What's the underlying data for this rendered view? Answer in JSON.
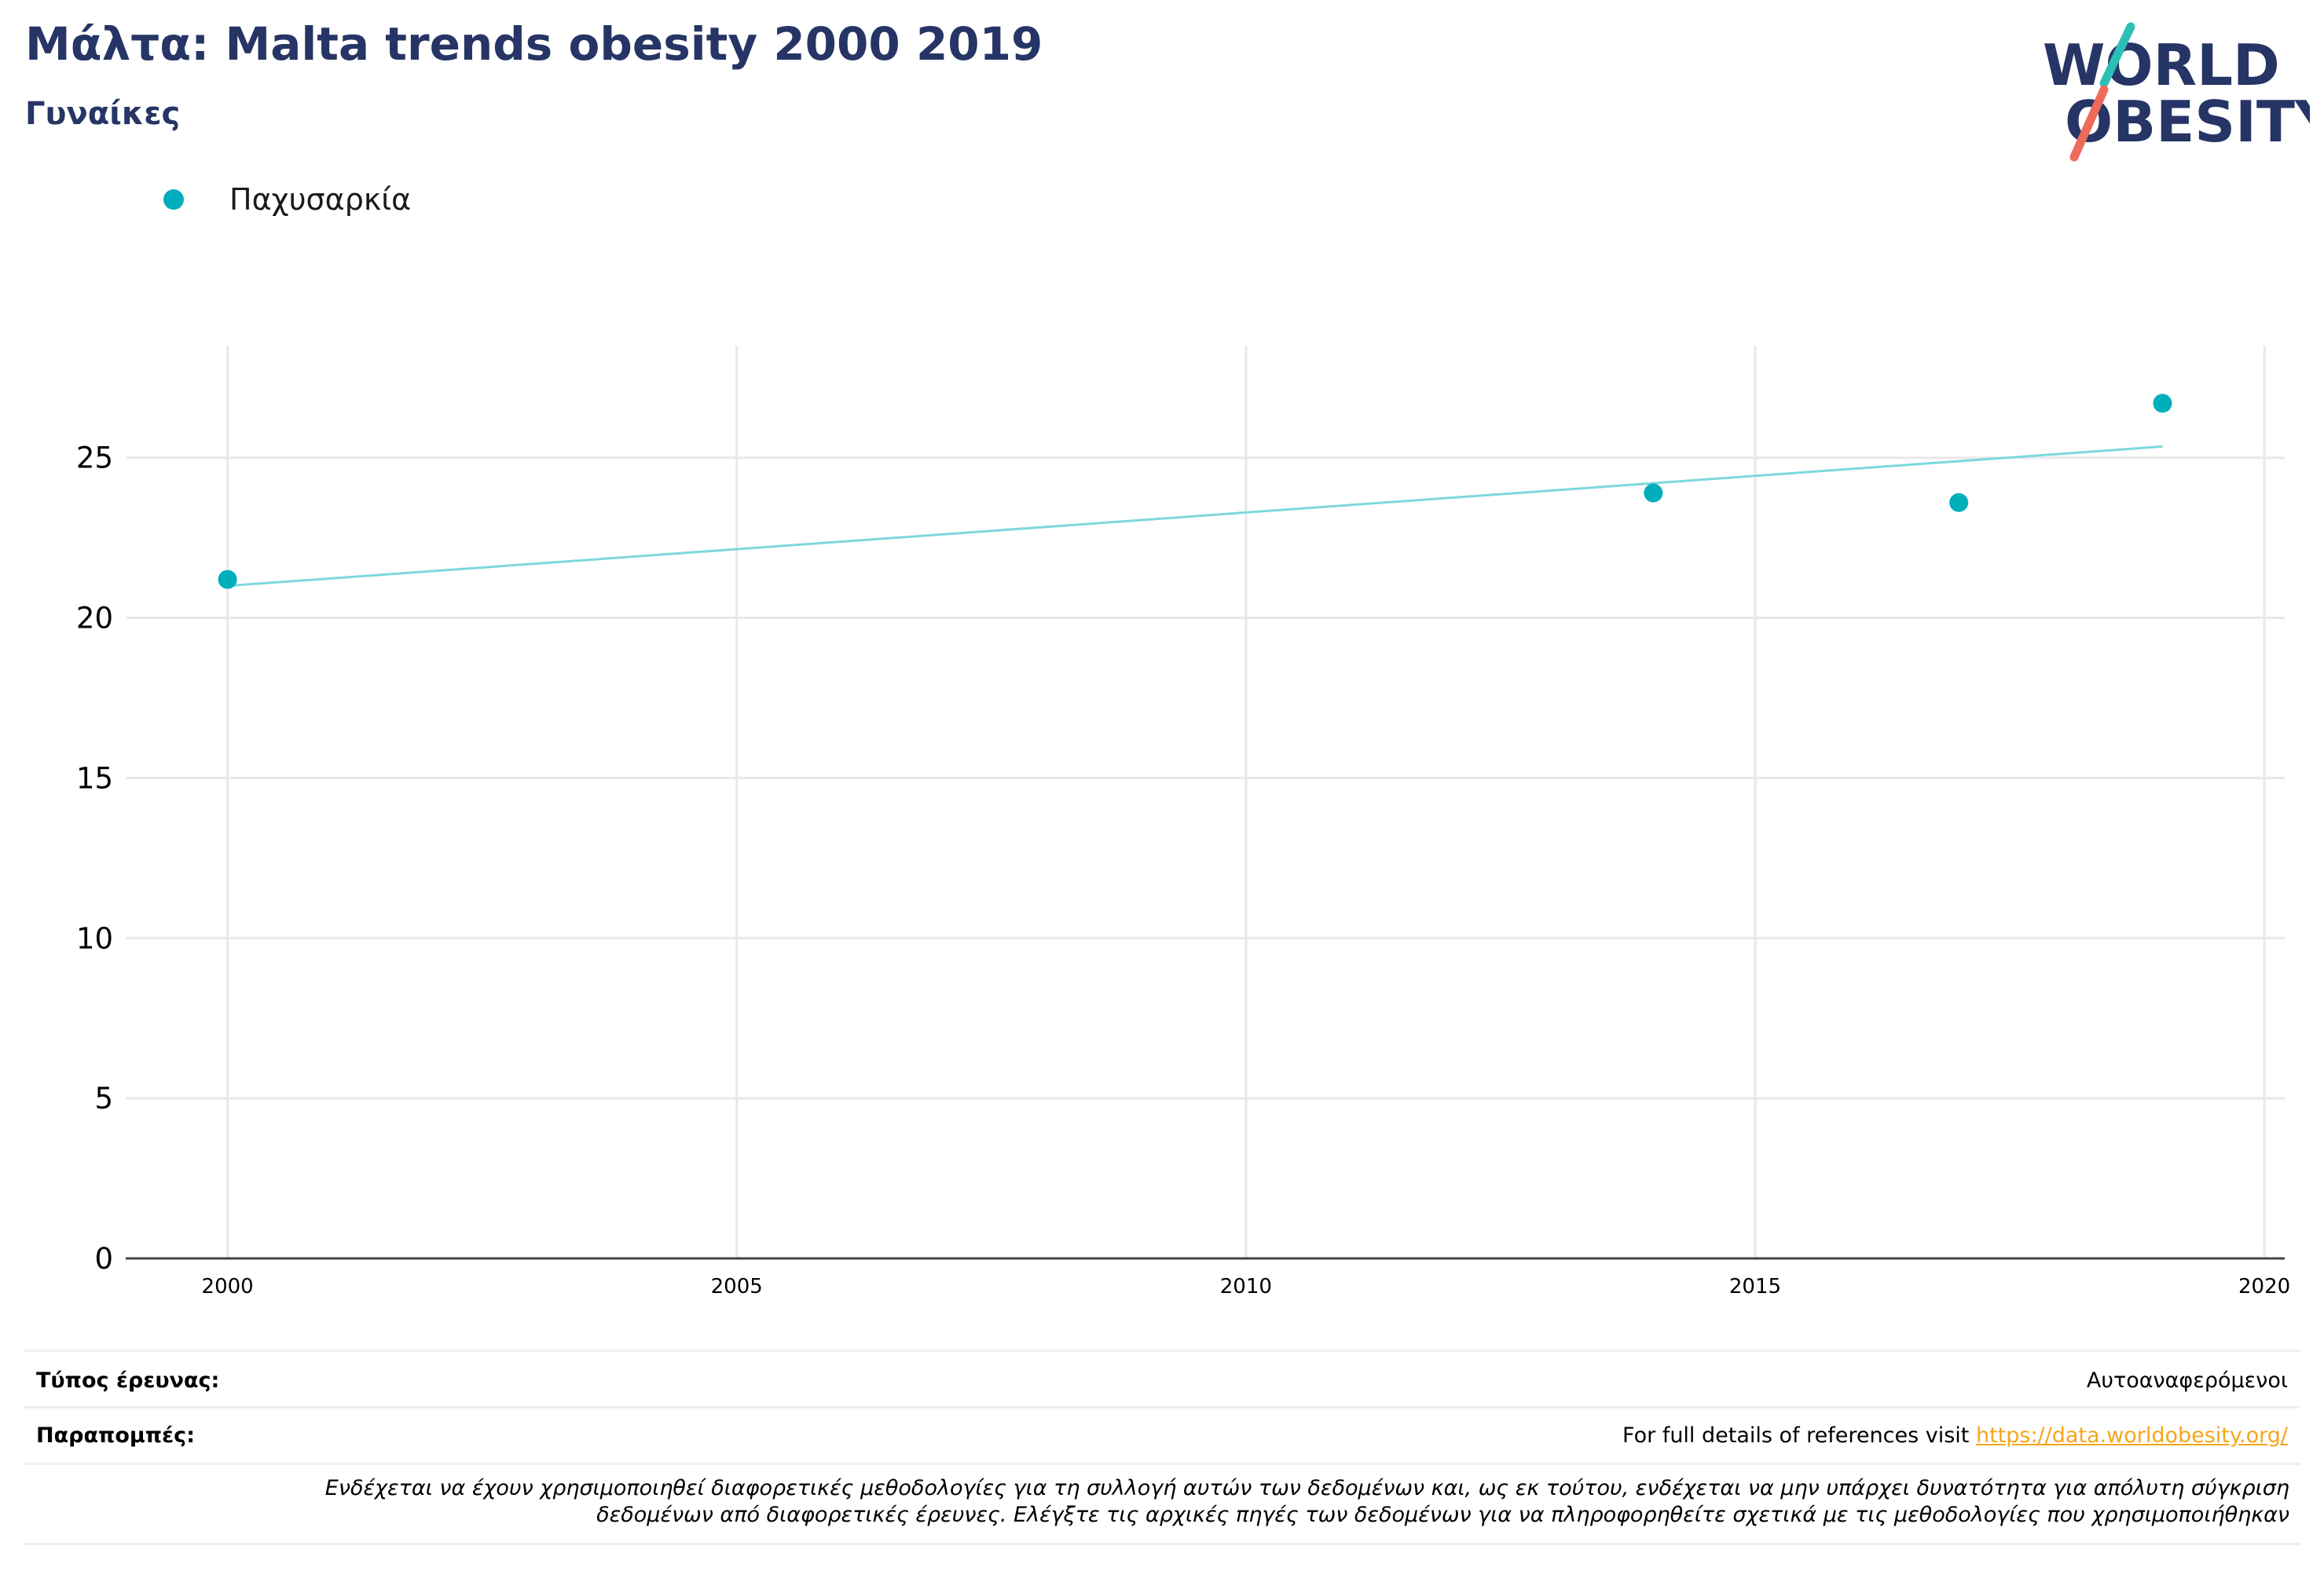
{
  "header": {
    "title": "Μάλτα: Malta trends obesity 2000 2019",
    "subtitle": "Γυναίκες"
  },
  "logo": {
    "line1": "WORLD",
    "line2": "OBESITY",
    "colors": {
      "text": "#263565",
      "slash_top": "#2cbfb6",
      "slash_bottom": "#ee6b5b"
    }
  },
  "legend": {
    "label": "Παχυσαρκία",
    "color": "#00aebc"
  },
  "chart_data": {
    "type": "scatter",
    "title": "",
    "xlabel": "",
    "ylabel": "",
    "xlim": [
      1999,
      2020.2
    ],
    "ylim": [
      0,
      28.5
    ],
    "xticks": [
      2000,
      2005,
      2010,
      2015,
      2020
    ],
    "yticks": [
      0,
      5,
      10,
      15,
      20,
      25
    ],
    "grid": true,
    "legend_position": "top-left",
    "series": [
      {
        "name": "Παχυσαρκία",
        "color": "#00aebc",
        "points": [
          {
            "x": 2000,
            "y": 21.2
          },
          {
            "x": 2014,
            "y": 23.9
          },
          {
            "x": 2017,
            "y": 23.6
          },
          {
            "x": 2019,
            "y": 26.7
          }
        ]
      }
    ],
    "trendline": {
      "color": "#7dd8dc",
      "from": {
        "x": 2000,
        "y": 21.0
      },
      "to": {
        "x": 2019,
        "y": 25.35
      }
    }
  },
  "footer": {
    "survey_type_label": "Τύπος έρευνας:",
    "survey_type_value": "Αυτοαναφερόμενοι",
    "references_label": "Παραπομπές:",
    "references_text": "For full details of references visit ",
    "references_link": "https://data.worldobesity.org/",
    "note_line1": "Ενδέχεται να έχουν χρησιμοποιηθεί διαφορετικές μεθοδολογίες για τη συλλογή αυτών των δεδομένων και, ως εκ τούτου, ενδέχεται να μην υπάρχει δυνατότητα για απόλυτη σύγκριση",
    "note_line2": "δεδομένων από διαφορετικές έρευνες. Ελέγξτε τις αρχικές πηγές των δεδομένων για να πληροφορηθείτε σχετικά με τις μεθοδολογίες που χρησιμοποιήθηκαν"
  }
}
